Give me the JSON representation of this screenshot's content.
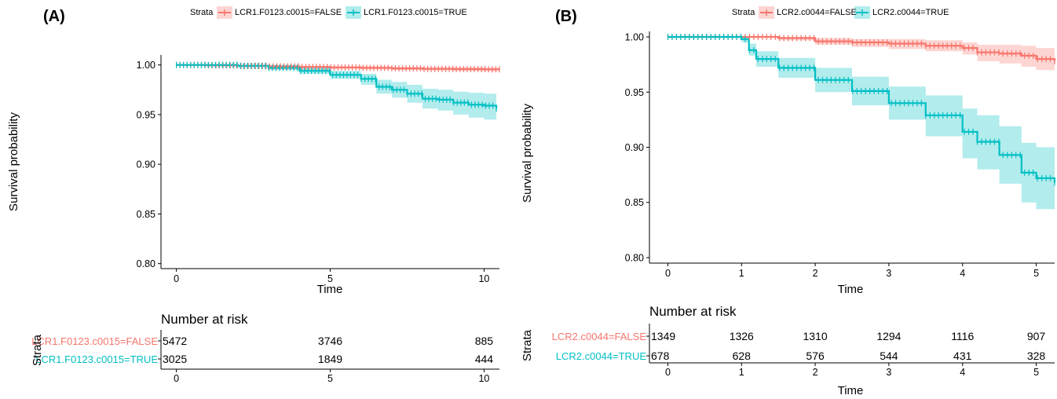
{
  "chart_data": [
    {
      "panel_label": "(A)",
      "type": "line",
      "subtype": "kaplan-meier",
      "legend": {
        "title": "Strata",
        "placement": "top"
      },
      "xlabel": "Time",
      "ylabel": "Survival probability",
      "xlim": [
        -0.5,
        10.5
      ],
      "ylim": [
        0.795,
        1.01
      ],
      "x_ticks": [
        0,
        5,
        10
      ],
      "y_ticks": [
        0.8,
        0.85,
        0.9,
        0.95,
        1.0
      ],
      "y_tick_labels": [
        "0.80",
        "0.85",
        "0.90",
        "0.95",
        "1.00"
      ],
      "series": [
        {
          "name": "LCR1.F0123.c0015=FALSE",
          "color": "#F8766D",
          "band_color": "#F8766D",
          "x": [
            0,
            1,
            2,
            3,
            4,
            5,
            6,
            7,
            8,
            9,
            10,
            10.5
          ],
          "y": [
            1.0,
            0.9995,
            0.999,
            0.9985,
            0.998,
            0.9975,
            0.997,
            0.9965,
            0.996,
            0.9958,
            0.9956,
            0.9955
          ],
          "lower": [
            1.0,
            0.999,
            0.998,
            0.997,
            0.9965,
            0.996,
            0.9955,
            0.995,
            0.9945,
            0.994,
            0.9935,
            0.9932
          ],
          "upper": [
            1.0,
            1.0,
            1.0,
            0.9995,
            0.999,
            0.9988,
            0.9985,
            0.998,
            0.9978,
            0.9975,
            0.9972,
            0.997
          ]
        },
        {
          "name": "LCR1.F0123.c0015=TRUE",
          "color": "#00BFC4",
          "band_color": "#00BFC4",
          "x": [
            0,
            1,
            2,
            3,
            4,
            5,
            6,
            6.5,
            7,
            7.5,
            8,
            8.5,
            9,
            9.5,
            10,
            10.4
          ],
          "y": [
            1.0,
            1.0,
            0.999,
            0.997,
            0.994,
            0.99,
            0.986,
            0.978,
            0.975,
            0.971,
            0.966,
            0.965,
            0.962,
            0.96,
            0.959,
            0.956
          ],
          "lower": [
            1.0,
            1.0,
            0.998,
            0.995,
            0.991,
            0.986,
            0.98,
            0.971,
            0.967,
            0.962,
            0.956,
            0.954,
            0.95,
            0.947,
            0.945,
            0.942
          ],
          "upper": [
            1.0,
            1.0,
            1.0,
            0.999,
            0.997,
            0.994,
            0.991,
            0.985,
            0.983,
            0.98,
            0.976,
            0.975,
            0.973,
            0.972,
            0.971,
            0.969
          ]
        }
      ],
      "risk_table": {
        "title": "Number at risk",
        "strata_axis_label": "Strata",
        "xlabel": "Time",
        "times": [
          0,
          5,
          10
        ],
        "rows": [
          {
            "label": "LCR1.F0123.c0015=FALSE",
            "color": "#F8766D",
            "counts": [
              "5472",
              "3746",
              "885"
            ]
          },
          {
            "label": "LCR1.F0123.c0015=TRUE",
            "color": "#00BFC4",
            "counts": [
              "3025",
              "1849",
              "444"
            ]
          }
        ]
      }
    },
    {
      "panel_label": "(B)",
      "type": "line",
      "subtype": "kaplan-meier",
      "legend": {
        "title": "Strata",
        "placement": "top"
      },
      "xlabel": "Time",
      "ylabel": "Survival probability",
      "xlim": [
        -0.25,
        5.25
      ],
      "ylim": [
        0.795,
        1.005
      ],
      "x_ticks": [
        0,
        1,
        2,
        3,
        4,
        5
      ],
      "y_ticks": [
        0.8,
        0.85,
        0.9,
        0.95,
        1.0
      ],
      "y_tick_labels": [
        "0.80",
        "0.85",
        "0.90",
        "0.95",
        "1.00"
      ],
      "series": [
        {
          "name": "LCR2.c0044=FALSE",
          "color": "#F8766D",
          "band_color": "#F8766D",
          "x": [
            0,
            1,
            1.5,
            2,
            2.5,
            3,
            3.5,
            4,
            4.2,
            4.5,
            4.8,
            5,
            5.25
          ],
          "y": [
            1.0,
            1.0,
            0.999,
            0.996,
            0.995,
            0.994,
            0.992,
            0.99,
            0.986,
            0.985,
            0.983,
            0.98,
            0.978
          ],
          "lower": [
            1.0,
            1.0,
            0.997,
            0.993,
            0.991,
            0.989,
            0.987,
            0.984,
            0.978,
            0.976,
            0.973,
            0.97,
            0.967
          ],
          "upper": [
            1.0,
            1.0,
            1.0,
            0.999,
            0.998,
            0.998,
            0.997,
            0.995,
            0.993,
            0.993,
            0.992,
            0.99,
            0.989
          ]
        },
        {
          "name": "LCR2.c0044=TRUE",
          "color": "#00BFC4",
          "band_color": "#00BFC4",
          "x": [
            0,
            0.9,
            1,
            1.1,
            1.2,
            1.5,
            2,
            2.5,
            3,
            3.5,
            4,
            4.2,
            4.5,
            4.8,
            5,
            5.25
          ],
          "y": [
            1.0,
            1.0,
            0.998,
            0.988,
            0.98,
            0.972,
            0.961,
            0.951,
            0.94,
            0.929,
            0.914,
            0.905,
            0.893,
            0.877,
            0.872,
            0.868
          ],
          "lower": [
            1.0,
            1.0,
            0.995,
            0.983,
            0.973,
            0.963,
            0.95,
            0.938,
            0.925,
            0.91,
            0.89,
            0.88,
            0.867,
            0.85,
            0.844,
            0.838
          ],
          "upper": [
            1.0,
            1.0,
            1.0,
            0.994,
            0.987,
            0.981,
            0.972,
            0.964,
            0.955,
            0.947,
            0.935,
            0.929,
            0.919,
            0.904,
            0.9,
            0.897
          ]
        }
      ],
      "risk_table": {
        "title": "Number at risk",
        "strata_axis_label": "Strata",
        "xlabel": "Time",
        "times": [
          0,
          1,
          2,
          3,
          4,
          5
        ],
        "rows": [
          {
            "label": "LCR2.c0044=FALSE",
            "color": "#F8766D",
            "counts": [
              "1349",
              "1326",
              "1310",
              "1294",
              "1116",
              "907"
            ]
          },
          {
            "label": "LCR2.c0044=TRUE",
            "color": "#00BFC4",
            "counts": [
              "678",
              "628",
              "576",
              "544",
              "431",
              "328"
            ]
          }
        ]
      }
    }
  ]
}
